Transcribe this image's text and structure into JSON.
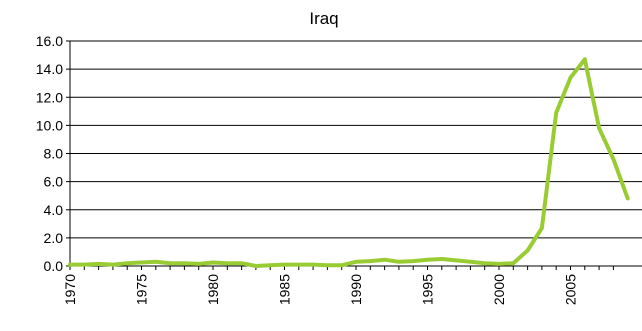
{
  "chart_data": {
    "type": "line",
    "title": "Iraq",
    "xlabel": "",
    "ylabel": "",
    "xlim": [
      1970,
      2008
    ],
    "ylim": [
      0,
      16
    ],
    "grid": true,
    "legend": "none",
    "y_ticks": [
      "0.0",
      "2.0",
      "4.0",
      "6.0",
      "8.0",
      "10.0",
      "12.0",
      "14.0",
      "16.0"
    ],
    "x_ticks": [
      "1970",
      "1975",
      "1980",
      "1985",
      "1990",
      "1995",
      "2000",
      "2005"
    ],
    "series": [
      {
        "color": "#99cc33",
        "x": [
          1970,
          1971,
          1972,
          1973,
          1974,
          1975,
          1976,
          1977,
          1978,
          1979,
          1980,
          1981,
          1982,
          1983,
          1984,
          1985,
          1986,
          1987,
          1988,
          1989,
          1990,
          1991,
          1992,
          1993,
          1994,
          1995,
          1996,
          1997,
          1998,
          1999,
          2000,
          2001,
          2002,
          2003,
          2004,
          2005,
          2006,
          2007,
          2008
        ],
        "values": [
          0.1,
          0.1,
          0.15,
          0.1,
          0.2,
          0.25,
          0.3,
          0.2,
          0.2,
          0.15,
          0.25,
          0.2,
          0.2,
          0.0,
          0.05,
          0.1,
          0.1,
          0.1,
          0.05,
          0.05,
          0.3,
          0.35,
          0.45,
          0.3,
          0.35,
          0.45,
          0.5,
          0.4,
          0.3,
          0.2,
          0.15,
          0.2,
          1.1,
          2.7,
          10.9,
          13.4,
          14.7,
          9.8,
          7.6
        ]
      }
    ],
    "x_end_value": 2009,
    "y_end_value": 4.8
  }
}
